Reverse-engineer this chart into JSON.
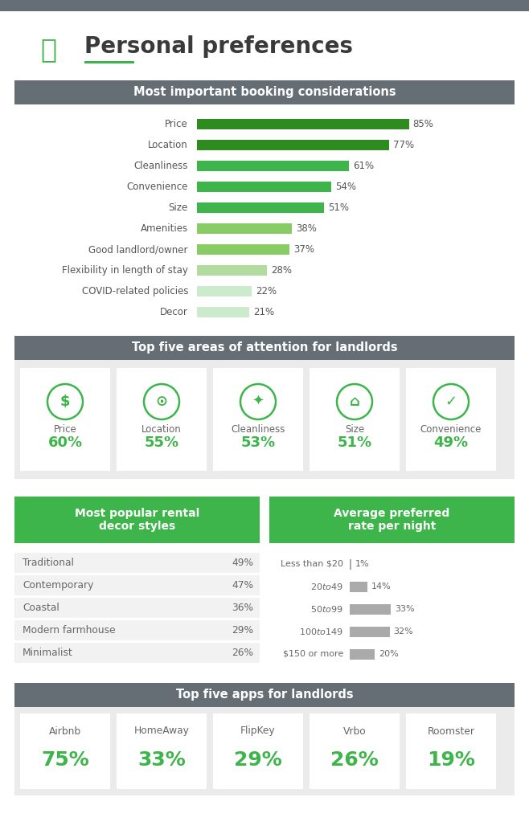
{
  "title": "Personal preferences",
  "top_bar_color": "#6b7278",
  "green": "#3db54a",
  "dark_green": "#2a8c2a",
  "gray_hdr": "#656d75",
  "booking_title": "Most important booking considerations",
  "booking_labels": [
    "Price",
    "Location",
    "Cleanliness",
    "Convenience",
    "Size",
    "Amenities",
    "Good landlord/owner",
    "Flexibility in length of stay",
    "COVID-related policies",
    "Decor"
  ],
  "booking_values": [
    85,
    77,
    61,
    54,
    51,
    38,
    37,
    28,
    22,
    21
  ],
  "booking_colors": [
    "#2e8b1e",
    "#2e8b1e",
    "#3db54a",
    "#3db54a",
    "#3db54a",
    "#88cc66",
    "#88cc66",
    "#b2dba0",
    "#cceacc",
    "#cceacc"
  ],
  "attention_title": "Top five areas of attention for landlords",
  "attention_labels": [
    "Price",
    "Location",
    "Cleanliness",
    "Size",
    "Convenience"
  ],
  "attention_values": [
    "60%",
    "55%",
    "53%",
    "51%",
    "49%"
  ],
  "decor_title": "Most popular rental\ndecor styles",
  "decor_labels": [
    "Traditional",
    "Contemporary",
    "Coastal",
    "Modern farmhouse",
    "Minimalist"
  ],
  "decor_values": [
    "49%",
    "47%",
    "36%",
    "29%",
    "26%"
  ],
  "rate_title": "Average preferred\nrate per night",
  "rate_labels": [
    "Less than $20",
    "$20 to $49",
    "$50 to $99",
    "$100 to $149",
    "$150 or more"
  ],
  "rate_values": [
    1,
    14,
    33,
    32,
    20
  ],
  "rate_pcts": [
    "1%",
    "14%",
    "33%",
    "32%",
    "20%"
  ],
  "apps_title": "Top five apps for landlords",
  "apps_labels": [
    "Airbnb",
    "HomeAway",
    "FlipKey",
    "Vrbo",
    "Roomster"
  ],
  "apps_values": [
    "75%",
    "33%",
    "29%",
    "26%",
    "19%"
  ]
}
